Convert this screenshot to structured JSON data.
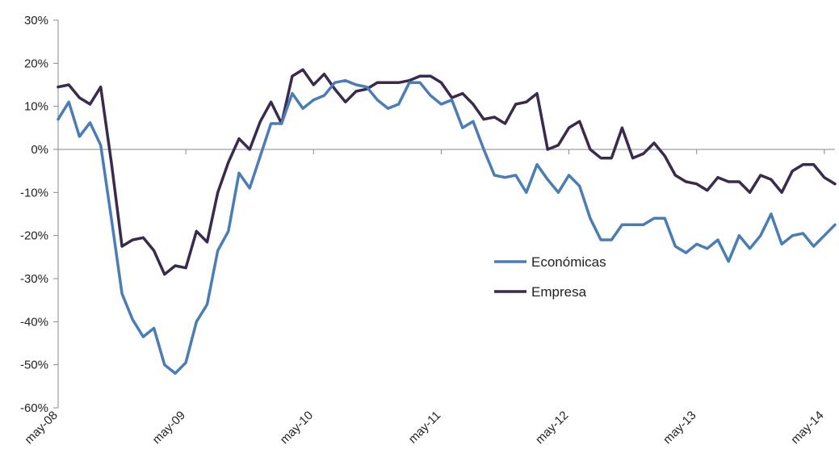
{
  "chart_data": {
    "type": "line",
    "title": "",
    "xlabel": "",
    "ylabel": "",
    "ylim": [
      -60,
      30
    ],
    "y_ticks": [
      30,
      20,
      10,
      0,
      -10,
      -20,
      -30,
      -40,
      -50,
      -60
    ],
    "y_tick_labels": [
      "30%",
      "20%",
      "10%",
      "0%",
      "-10%",
      "-20%",
      "-30%",
      "-40%",
      "-50%",
      "-60%"
    ],
    "x_tick_labels": [
      "may-08",
      "may-09",
      "may-10",
      "may-11",
      "may-12",
      "may-13",
      "may-14"
    ],
    "x_tick_index": [
      0,
      12,
      24,
      36,
      48,
      60,
      72
    ],
    "legend_position": "right-center",
    "grid": false,
    "series": [
      {
        "name": "Económicas",
        "color": "#4a7db5",
        "values": [
          7,
          11,
          3,
          6.2,
          1,
          -16,
          -33.5,
          -39.5,
          -43.5,
          -41.5,
          -50,
          -52,
          -49.5,
          -40,
          -36,
          -23.5,
          -19,
          -5.5,
          -9,
          -1.5,
          6,
          6,
          13,
          9.5,
          11.5,
          12.5,
          15.5,
          16,
          15,
          14.5,
          11.5,
          9.5,
          10.5,
          15.5,
          15.5,
          12.5,
          10.5,
          11.5,
          5,
          6.5,
          0,
          -6,
          -6.5,
          -6,
          -10,
          -3.5,
          -7,
          -10,
          -6,
          -8.5,
          -16,
          -21,
          -21,
          -17.5,
          -17.5,
          -17.5,
          -16,
          -16,
          -22.5,
          -24,
          -22,
          -23,
          -21,
          -26,
          -20,
          -23,
          -20,
          -15,
          -22,
          -20,
          -19.5,
          -22.5,
          -20,
          -17.5
        ]
      },
      {
        "name": "Empresa",
        "color": "#3a2a4e",
        "values": [
          14.5,
          15,
          12,
          10.5,
          14.5,
          -3,
          -22.5,
          -21,
          -20.5,
          -23.5,
          -29,
          -27,
          -27.5,
          -19,
          -21.5,
          -10,
          -3,
          2.5,
          0,
          6.5,
          11,
          6,
          17,
          18.5,
          15,
          17.5,
          14,
          11,
          13.5,
          14,
          15.5,
          15.5,
          15.5,
          16,
          17,
          17,
          15.5,
          12,
          13,
          10.5,
          7,
          7.5,
          6,
          10.5,
          11,
          13,
          0,
          1,
          5,
          6.5,
          0,
          -2,
          -2,
          5,
          -2,
          -1,
          1.5,
          -1.5,
          -6,
          -7.5,
          -8,
          -9.5,
          -6.5,
          -7.5,
          -7.5,
          -10,
          -6,
          -7,
          -10,
          -5,
          -3.5,
          -3.5,
          -6.5,
          -8
        ]
      }
    ]
  }
}
